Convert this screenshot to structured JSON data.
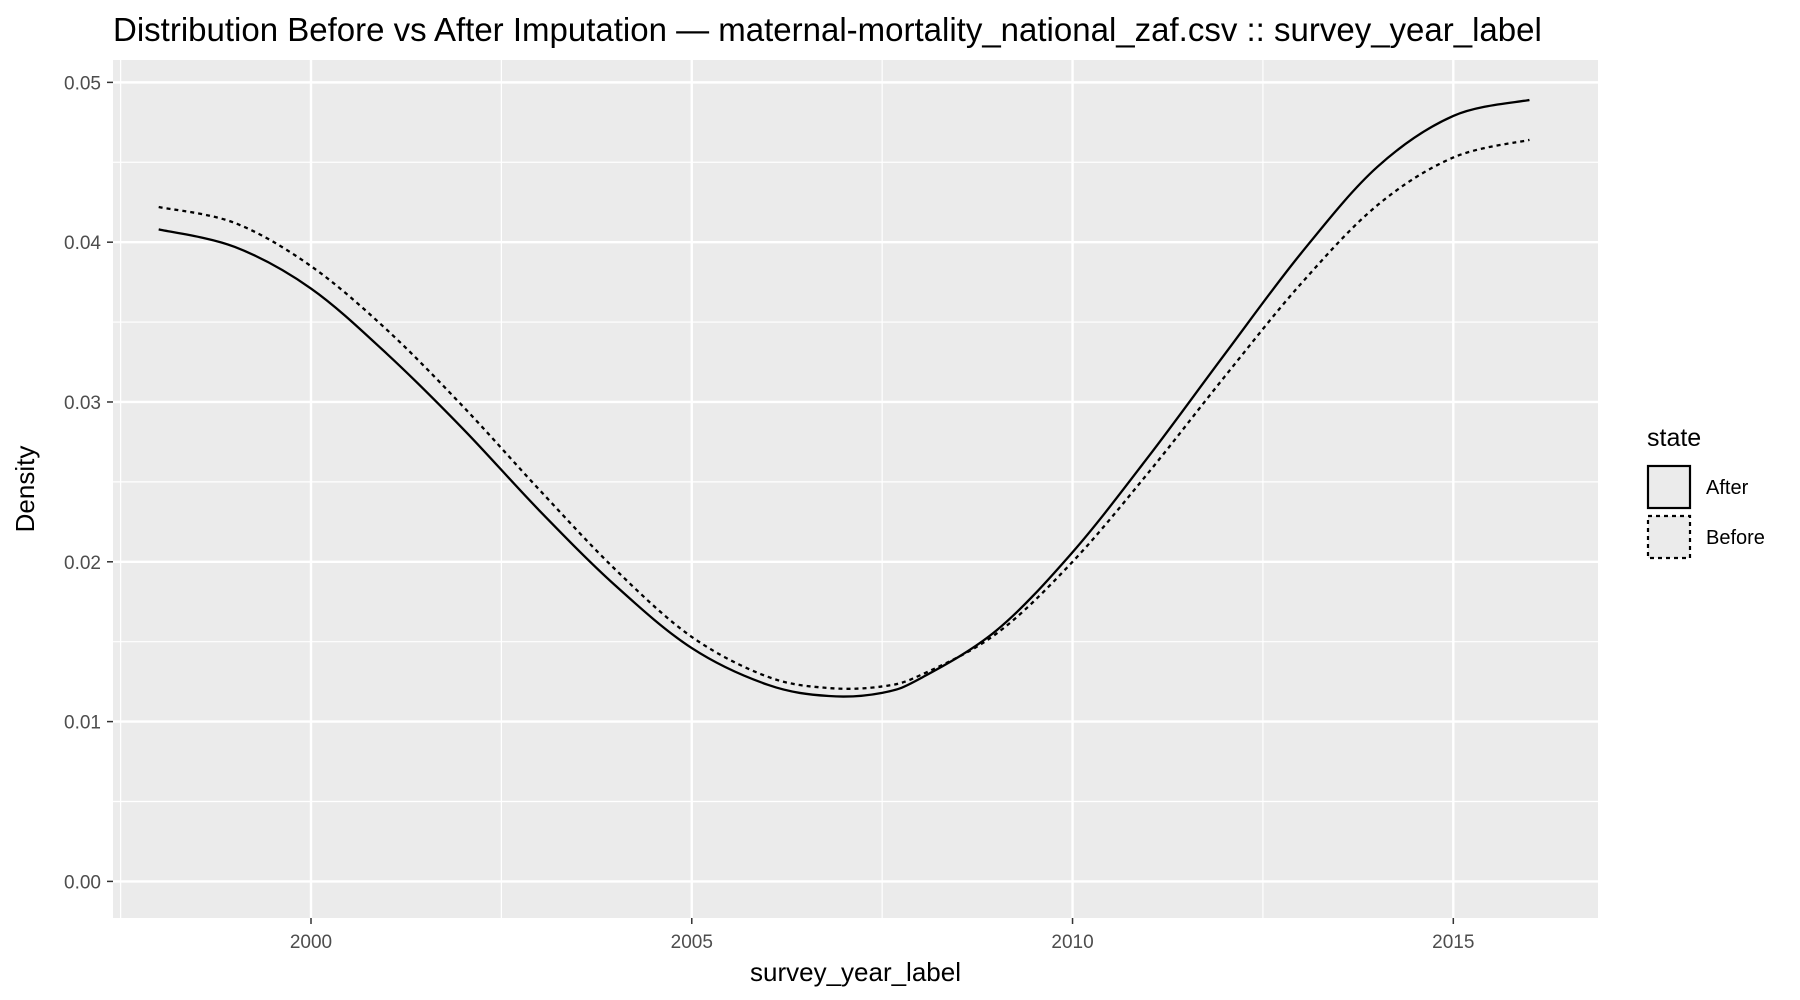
{
  "chart_data": {
    "type": "line",
    "title": "Distribution Before vs After Imputation — maternal-mortality_national_zaf.csv :: survey_year_label",
    "xlabel": "survey_year_label",
    "ylabel": "Density",
    "xlim": [
      1997.4,
      2016.9
    ],
    "ylim": [
      -0.00229,
      0.0514
    ],
    "x_ticks": [
      2000,
      2005,
      2010,
      2015
    ],
    "x_tick_labels": [
      "2000",
      "2005",
      "2010",
      "2015"
    ],
    "y_ticks": [
      0.0,
      0.01,
      0.02,
      0.03,
      0.04,
      0.05
    ],
    "y_tick_labels": [
      "0.00",
      "0.01",
      "0.02",
      "0.03",
      "0.04",
      "0.05"
    ],
    "grid": true,
    "legend": {
      "title": "state",
      "position": "right",
      "entries": [
        "After",
        "Before"
      ]
    },
    "series": [
      {
        "name": "After",
        "linestyle": "solid",
        "color": "#000000",
        "x": [
          1998,
          1999,
          2000,
          2001,
          2002,
          2003,
          2004,
          2005,
          2006,
          2006.8,
          2007.5,
          2008,
          2009,
          2010,
          2011,
          2012,
          2013,
          2014,
          2015,
          2016
        ],
        "y": [
          0.0408,
          0.0397,
          0.0371,
          0.033,
          0.0283,
          0.0232,
          0.0185,
          0.0146,
          0.0123,
          0.0116,
          0.0118,
          0.0127,
          0.0157,
          0.0206,
          0.0266,
          0.033,
          0.0393,
          0.0447,
          0.0479,
          0.0489
        ]
      },
      {
        "name": "Before",
        "linestyle": "dashed",
        "color": "#000000",
        "x": [
          1998,
          1999,
          2000,
          2001,
          2002,
          2003,
          2004,
          2005,
          2006,
          2006.8,
          2007.5,
          2008,
          2009,
          2010,
          2011,
          2012,
          2013,
          2014,
          2015,
          2016
        ],
        "y": [
          0.0422,
          0.0412,
          0.0385,
          0.0345,
          0.0297,
          0.0245,
          0.0195,
          0.0153,
          0.0128,
          0.0121,
          0.0122,
          0.0129,
          0.0155,
          0.02,
          0.0256,
          0.0316,
          0.0374,
          0.0423,
          0.0453,
          0.0464
        ]
      }
    ]
  }
}
